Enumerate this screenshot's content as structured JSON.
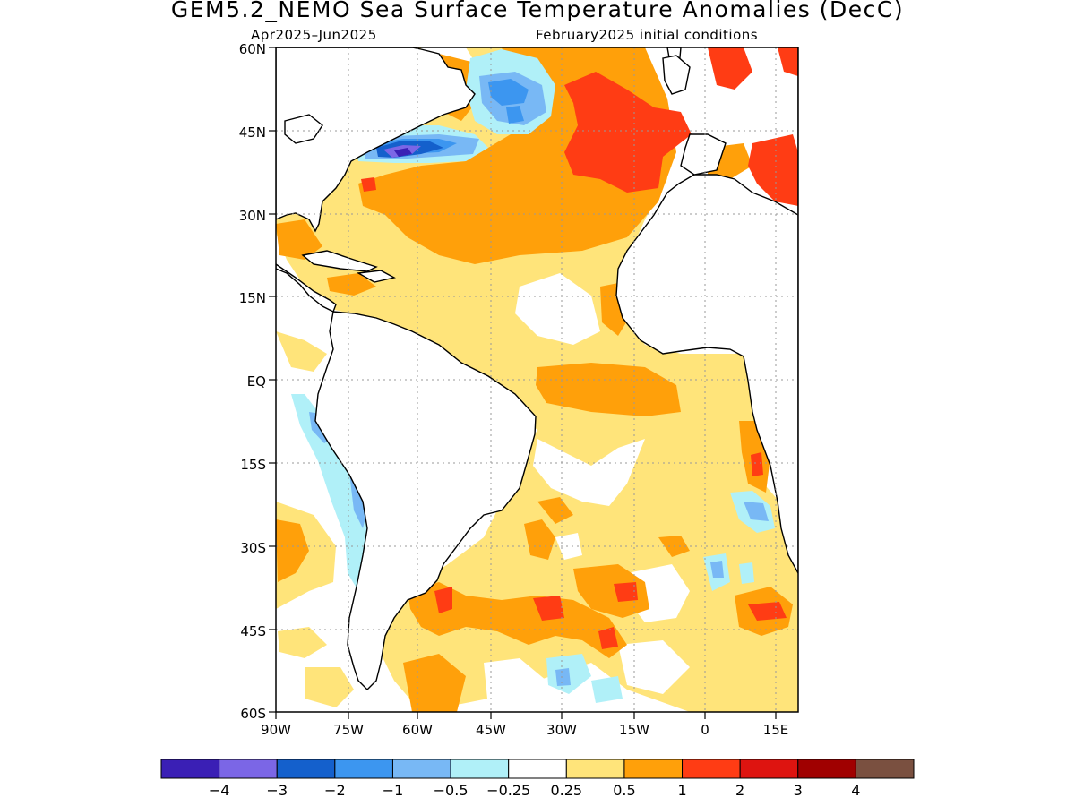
{
  "title": "GEM5.2_NEMO Sea Surface Temperature Anomalies (DecC)",
  "subtitle_left": "Apr2025–Jun2025",
  "subtitle_right": "February2025 initial conditions",
  "lat_labels": [
    "60N",
    "45N",
    "30N",
    "15N",
    "EQ",
    "15S",
    "30S",
    "45S",
    "60S"
  ],
  "lon_labels": [
    "90W",
    "75W",
    "60W",
    "45W",
    "30W",
    "15W",
    "0",
    "15E"
  ],
  "colorbar": {
    "colors": [
      "#3a1fb5",
      "#7b66e6",
      "#1460cc",
      "#3c96f0",
      "#78b8f5",
      "#b0f0f8",
      "#ffffff",
      "#ffe47a",
      "#ffa00a",
      "#ff3c14",
      "#de1410",
      "#a00000",
      "#7a5040"
    ],
    "labels": [
      "−4",
      "−3",
      "−2",
      "−1",
      "−0.5",
      "−0.25",
      "0.25",
      "0.5",
      "1",
      "2",
      "3",
      "4"
    ]
  }
}
